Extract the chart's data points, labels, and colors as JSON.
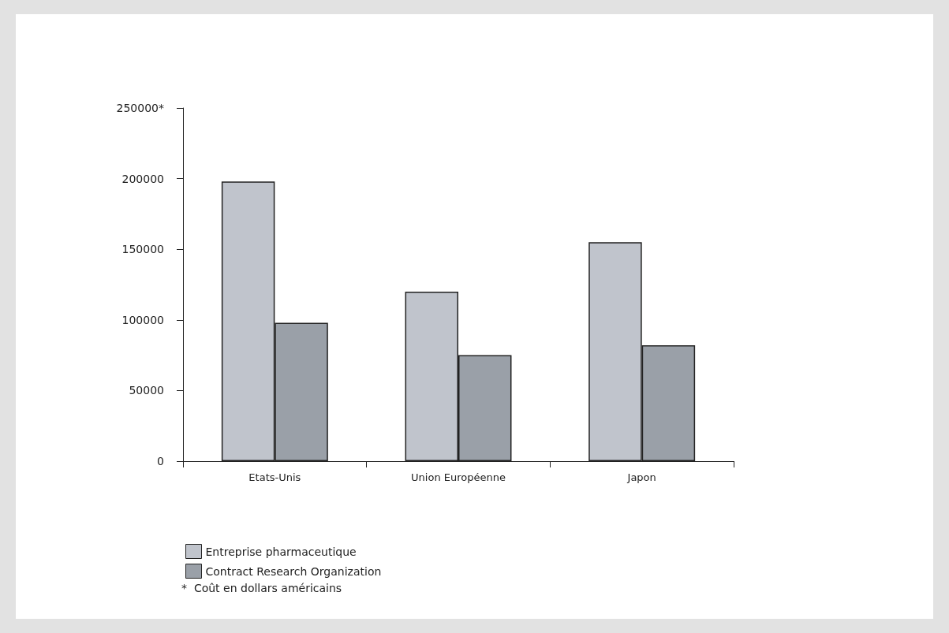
{
  "chart_data": {
    "type": "bar",
    "categories": [
      "Etats-Unis",
      "Union Européenne",
      "Japon"
    ],
    "series": [
      {
        "name": "Entreprise pharmaceutique",
        "color": "#c0c4cc",
        "values": [
          198000,
          120000,
          155000
        ]
      },
      {
        "name": "Contract Research Organization",
        "color": "#9aa0a8",
        "values": [
          98000,
          75000,
          82000
        ]
      }
    ],
    "ylim": [
      0,
      250000
    ],
    "yticks": [
      0,
      50000,
      100000,
      150000,
      200000,
      {
        "value": 250000,
        "label": "250000*"
      }
    ],
    "grid": false,
    "legend": "bottom left",
    "annotations": [
      "*  Coût en dollars américains"
    ]
  }
}
